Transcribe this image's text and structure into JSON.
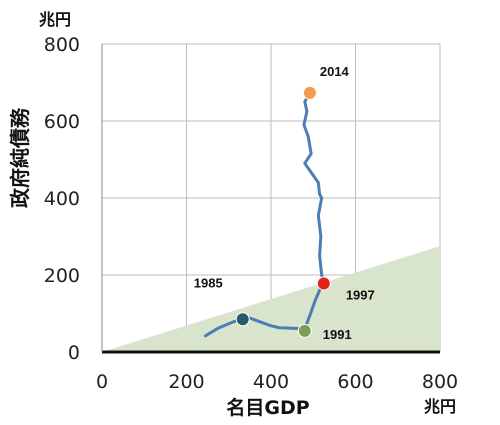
{
  "chart_data": {
    "type": "line",
    "xlabel": "名目GDP",
    "ylabel": "政府純債務",
    "x_unit": "兆円",
    "y_unit": "兆円",
    "xlim": [
      0,
      800
    ],
    "ylim": [
      0,
      800
    ],
    "x_ticks": [
      "0",
      "200",
      "400",
      "600",
      "800"
    ],
    "y_ticks": [
      "0",
      "200",
      "400",
      "600",
      "800"
    ],
    "grid": true,
    "area": {
      "points": [
        [
          0,
          0
        ],
        [
          800,
          0
        ],
        [
          800,
          275
        ]
      ],
      "color": "#d8e4cc"
    },
    "series": [
      {
        "color": "#4a7eb5",
        "points": [
          [
            245,
            42
          ],
          [
            275,
            62
          ],
          [
            310,
            78
          ],
          [
            333,
            85
          ],
          [
            350,
            88
          ],
          [
            370,
            80
          ],
          [
            400,
            68
          ],
          [
            420,
            63
          ],
          [
            445,
            62
          ],
          [
            480,
            60
          ],
          [
            492,
            95
          ],
          [
            505,
            135
          ],
          [
            518,
            168
          ],
          [
            525,
            178
          ],
          [
            520,
            200
          ],
          [
            515,
            250
          ],
          [
            518,
            300
          ],
          [
            512,
            355
          ],
          [
            520,
            400
          ],
          [
            515,
            410
          ],
          [
            512,
            440
          ],
          [
            480,
            490
          ],
          [
            495,
            515
          ],
          [
            488,
            560
          ],
          [
            478,
            590
          ],
          [
            485,
            625
          ],
          [
            480,
            650
          ],
          [
            492,
            673
          ]
        ]
      }
    ],
    "annotations": [
      {
        "label": "1985",
        "x": 333,
        "y": 85,
        "color": "#2b5a64"
      },
      {
        "label": "1991",
        "x": 480,
        "y": 55,
        "color": "#7a9d57"
      },
      {
        "label": "1997",
        "x": 525,
        "y": 178,
        "color": "#e2231a"
      },
      {
        "label": "2014",
        "x": 492,
        "y": 673,
        "color": "#f59a4c"
      }
    ]
  }
}
